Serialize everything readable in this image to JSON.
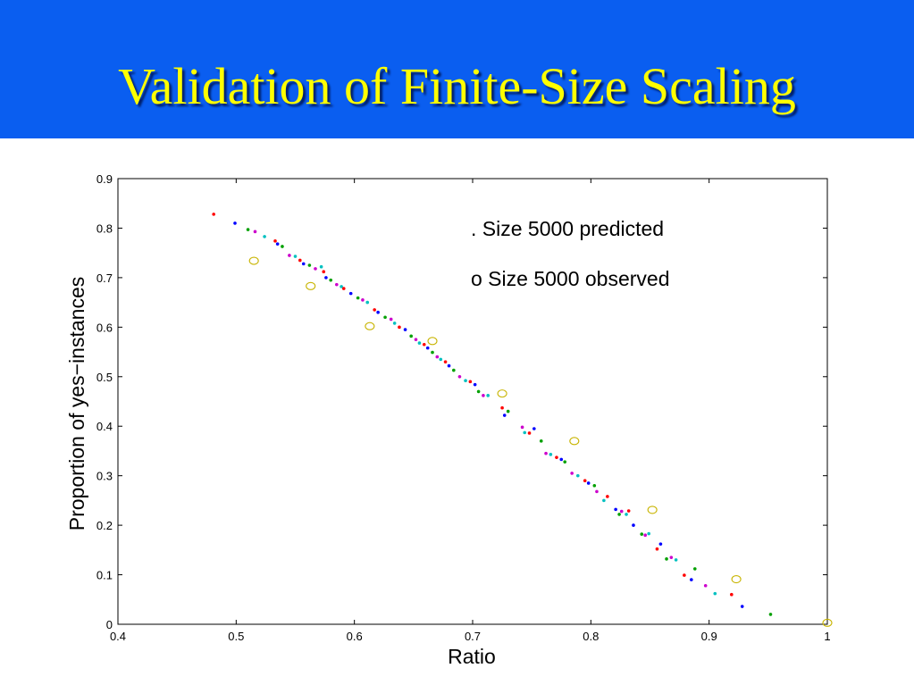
{
  "slide": {
    "title": "Validation of Finite-Size Scaling",
    "band_color": "#0a5ef0",
    "title_color": "#ffff00"
  },
  "chart_data": {
    "type": "scatter",
    "title": "",
    "xlabel": "Ratio",
    "ylabel": "Proportion of yes−instances",
    "xlim": [
      0.4,
      1.0
    ],
    "ylim": [
      0,
      0.9
    ],
    "x_ticks": [
      0.4,
      0.5,
      0.6,
      0.7,
      0.8,
      0.9,
      1
    ],
    "x_tick_labels": [
      "0.4",
      "0.5",
      "0.6",
      "0.7",
      "0.8",
      "0.9",
      "1"
    ],
    "y_ticks": [
      0,
      0.1,
      0.2,
      0.3,
      0.4,
      0.5,
      0.6,
      0.7,
      0.8,
      0.9
    ],
    "y_tick_labels": [
      "0",
      "0.1",
      "0.2",
      "0.3",
      "0.4",
      "0.5",
      "0.6",
      "0.7",
      "0.8",
      "0.9"
    ],
    "grid": false,
    "legend": [
      ". Size 5000 predicted",
      "o Size 5000 observed"
    ],
    "legend_position": "top-right",
    "series": [
      {
        "name": ". Size 5000 predicted",
        "marker": "dot",
        "colors": [
          "#ff0000",
          "#0000ff",
          "#00a000",
          "#cc00cc",
          "#00c0c0"
        ],
        "points": [
          [
            0.481,
            0.828
          ],
          [
            0.499,
            0.81
          ],
          [
            0.51,
            0.797
          ],
          [
            0.516,
            0.793
          ],
          [
            0.524,
            0.783
          ],
          [
            0.533,
            0.774
          ],
          [
            0.535,
            0.768
          ],
          [
            0.539,
            0.763
          ],
          [
            0.545,
            0.745
          ],
          [
            0.55,
            0.743
          ],
          [
            0.554,
            0.735
          ],
          [
            0.557,
            0.728
          ],
          [
            0.562,
            0.725
          ],
          [
            0.567,
            0.718
          ],
          [
            0.572,
            0.722
          ],
          [
            0.574,
            0.712
          ],
          [
            0.576,
            0.7
          ],
          [
            0.58,
            0.695
          ],
          [
            0.585,
            0.686
          ],
          [
            0.589,
            0.682
          ],
          [
            0.591,
            0.678
          ],
          [
            0.597,
            0.668
          ],
          [
            0.603,
            0.659
          ],
          [
            0.607,
            0.655
          ],
          [
            0.611,
            0.65
          ],
          [
            0.617,
            0.635
          ],
          [
            0.62,
            0.63
          ],
          [
            0.626,
            0.62
          ],
          [
            0.631,
            0.616
          ],
          [
            0.634,
            0.608
          ],
          [
            0.638,
            0.6
          ],
          [
            0.643,
            0.595
          ],
          [
            0.648,
            0.582
          ],
          [
            0.652,
            0.575
          ],
          [
            0.655,
            0.568
          ],
          [
            0.659,
            0.565
          ],
          [
            0.662,
            0.558
          ],
          [
            0.666,
            0.549
          ],
          [
            0.67,
            0.54
          ],
          [
            0.673,
            0.535
          ],
          [
            0.677,
            0.53
          ],
          [
            0.68,
            0.522
          ],
          [
            0.684,
            0.513
          ],
          [
            0.689,
            0.5
          ],
          [
            0.694,
            0.492
          ],
          [
            0.698,
            0.49
          ],
          [
            0.702,
            0.484
          ],
          [
            0.705,
            0.47
          ],
          [
            0.709,
            0.462
          ],
          [
            0.713,
            0.462
          ],
          [
            0.725,
            0.437
          ],
          [
            0.727,
            0.422
          ],
          [
            0.73,
            0.43
          ],
          [
            0.742,
            0.398
          ],
          [
            0.744,
            0.387
          ],
          [
            0.748,
            0.386
          ],
          [
            0.752,
            0.395
          ],
          [
            0.758,
            0.37
          ],
          [
            0.762,
            0.345
          ],
          [
            0.766,
            0.343
          ],
          [
            0.771,
            0.337
          ],
          [
            0.775,
            0.333
          ],
          [
            0.778,
            0.328
          ],
          [
            0.784,
            0.305
          ],
          [
            0.789,
            0.3
          ],
          [
            0.795,
            0.29
          ],
          [
            0.798,
            0.285
          ],
          [
            0.803,
            0.28
          ],
          [
            0.805,
            0.268
          ],
          [
            0.811,
            0.25
          ],
          [
            0.814,
            0.258
          ],
          [
            0.821,
            0.232
          ],
          [
            0.824,
            0.222
          ],
          [
            0.826,
            0.228
          ],
          [
            0.83,
            0.222
          ],
          [
            0.832,
            0.229
          ],
          [
            0.836,
            0.2
          ],
          [
            0.843,
            0.182
          ],
          [
            0.846,
            0.18
          ],
          [
            0.849,
            0.183
          ],
          [
            0.856,
            0.152
          ],
          [
            0.859,
            0.162
          ],
          [
            0.864,
            0.132
          ],
          [
            0.868,
            0.135
          ],
          [
            0.872,
            0.13
          ],
          [
            0.879,
            0.099
          ],
          [
            0.885,
            0.09
          ],
          [
            0.888,
            0.112
          ],
          [
            0.897,
            0.078
          ],
          [
            0.905,
            0.062
          ],
          [
            0.919,
            0.06
          ],
          [
            0.928,
            0.036
          ],
          [
            0.952,
            0.02
          ]
        ]
      },
      {
        "name": "o Size 5000 observed",
        "marker": "circle",
        "color": "#c8b400",
        "points": [
          [
            0.515,
            0.734
          ],
          [
            0.563,
            0.683
          ],
          [
            0.613,
            0.602
          ],
          [
            0.666,
            0.572
          ],
          [
            0.725,
            0.466
          ],
          [
            0.786,
            0.37
          ],
          [
            0.852,
            0.231
          ],
          [
            0.923,
            0.091
          ],
          [
            1.0,
            0.003
          ]
        ]
      }
    ]
  }
}
